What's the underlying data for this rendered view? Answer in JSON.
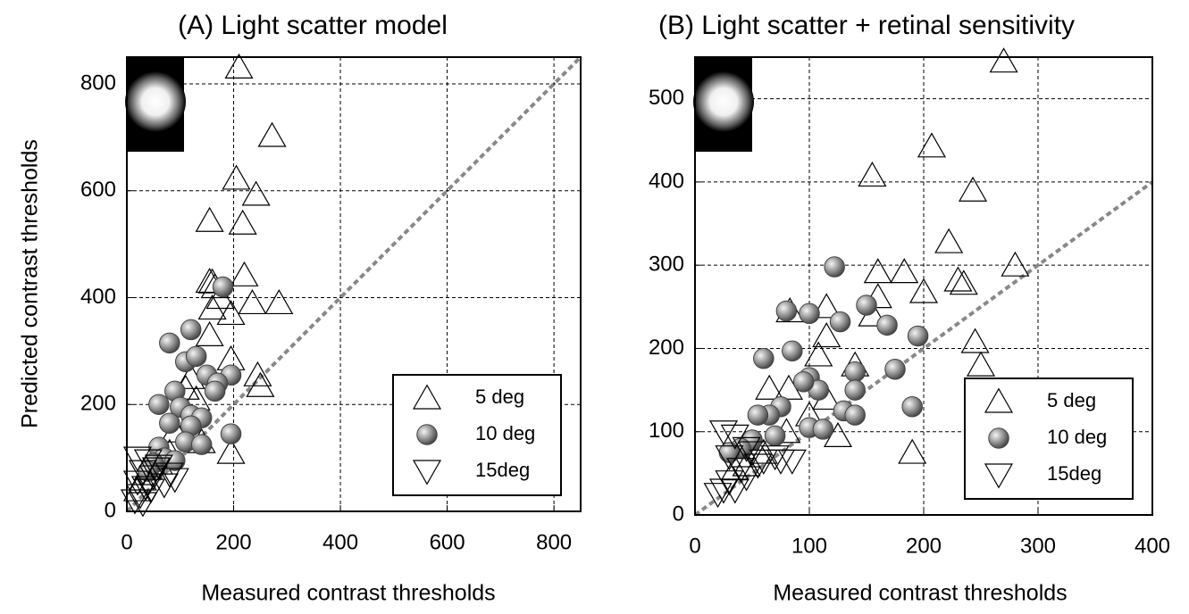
{
  "chart_data": [
    {
      "type": "scatter",
      "title": "(A) Light scatter model",
      "x_label": "Measured contrast thresholds",
      "y_label": "Predicted contrast thresholds",
      "xlim": [
        0,
        850
      ],
      "ylim": [
        0,
        850
      ],
      "xticks": [
        0,
        200,
        400,
        600,
        800
      ],
      "yticks": [
        0,
        200,
        400,
        600,
        800
      ],
      "grid": true,
      "legend": "lower right",
      "series": [
        {
          "name": "5 deg",
          "marker": "triangle-up",
          "color": "#000000",
          "x": [
            210,
            272,
            205,
            242,
            217,
            155,
            220,
            160,
            155,
            165,
            175,
            160,
            155,
            235,
            285,
            195,
            195,
            245,
            250,
            195,
            120,
            110,
            130,
            100,
            90,
            140,
            80,
            60,
            40,
            30,
            20
          ],
          "y": [
            831,
            703,
            623,
            593,
            539,
            544,
            442,
            429,
            430,
            420,
            400,
            380,
            330,
            390,
            390,
            370,
            285,
            255,
            235,
            110,
            250,
            230,
            210,
            180,
            150,
            130,
            110,
            90,
            80,
            60,
            40
          ]
        },
        {
          "name": "10 deg",
          "marker": "sphere",
          "color": "#808080",
          "x": [
            180,
            120,
            80,
            110,
            130,
            150,
            195,
            170,
            165,
            90,
            60,
            100,
            120,
            140,
            80,
            120,
            110,
            140,
            60,
            195,
            70,
            90,
            50,
            40
          ],
          "y": [
            420,
            340,
            315,
            280,
            290,
            255,
            255,
            240,
            225,
            225,
            200,
            195,
            180,
            175,
            165,
            160,
            130,
            125,
            120,
            145,
            100,
            95,
            90,
            75
          ]
        },
        {
          "name": "15deg",
          "marker": "triangle-down",
          "color": "#000000",
          "x": [
            20,
            40,
            60,
            30,
            80,
            50,
            90,
            20,
            35,
            25,
            15,
            45,
            70,
            30,
            55
          ],
          "y": [
            100,
            95,
            85,
            75,
            70,
            65,
            60,
            55,
            45,
            30,
            20,
            40,
            50,
            15,
            80
          ]
        }
      ]
    },
    {
      "type": "scatter",
      "title": "(B) Light scatter + retinal sensitivity",
      "x_label": "Measured contrast thresholds",
      "xlim": [
        0,
        400
      ],
      "ylim": [
        0,
        550
      ],
      "xticks": [
        0,
        100,
        200,
        300,
        400
      ],
      "yticks": [
        0,
        100,
        200,
        300,
        400,
        500
      ],
      "grid": true,
      "legend": "lower right",
      "series": [
        {
          "name": "5 deg",
          "marker": "triangle-up",
          "color": "#000000",
          "x": [
            270,
            207,
            155,
            243,
            222,
            280,
            160,
            183,
            200,
            230,
            235,
            115,
            160,
            155,
            115,
            245,
            250,
            140,
            108,
            83,
            65,
            82,
            115,
            100,
            125,
            190,
            80,
            60,
            45,
            35
          ],
          "y": [
            545,
            443,
            408,
            390,
            328,
            300,
            292,
            292,
            268,
            282,
            278,
            250,
            262,
            240,
            215,
            208,
            180,
            180,
            192,
            245,
            152,
            152,
            140,
            120,
            95,
            75,
            100,
            75,
            60,
            55
          ]
        },
        {
          "name": "10 deg",
          "marker": "sphere",
          "color": "#808080",
          "x": [
            122,
            80,
            100,
            150,
            168,
            127,
            60,
            85,
            140,
            175,
            195,
            100,
            108,
            95,
            140,
            75,
            65,
            100,
            112,
            130,
            140,
            55,
            190,
            50,
            40,
            70,
            30
          ],
          "y": [
            298,
            245,
            242,
            252,
            228,
            232,
            188,
            197,
            172,
            175,
            215,
            165,
            150,
            160,
            150,
            130,
            120,
            105,
            103,
            125,
            120,
            120,
            130,
            90,
            80,
            95,
            75
          ]
        },
        {
          "name": "15deg",
          "marker": "triangle-down",
          "color": "#000000",
          "x": [
            25,
            35,
            45,
            30,
            50,
            60,
            70,
            40,
            30,
            25,
            20,
            55,
            75,
            85,
            45,
            35
          ],
          "y": [
            100,
            95,
            80,
            70,
            75,
            65,
            70,
            55,
            40,
            30,
            25,
            60,
            65,
            65,
            45,
            30
          ]
        }
      ]
    }
  ]
}
